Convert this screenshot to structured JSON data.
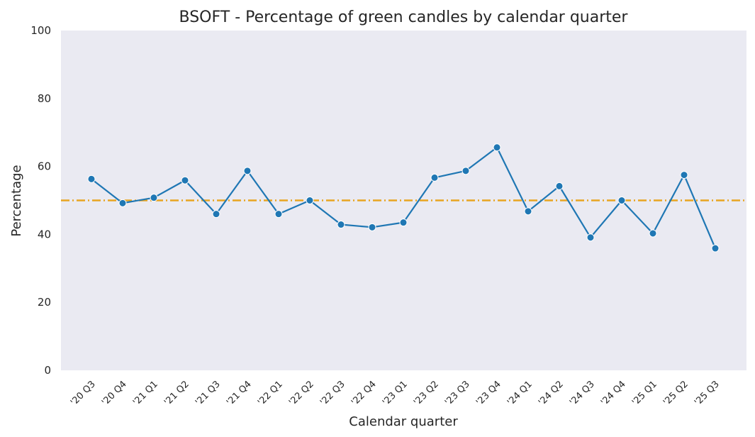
{
  "chart_data": {
    "type": "line",
    "title": "BSOFT - Percentage of green candles by calendar quarter",
    "xlabel": "Calendar quarter",
    "ylabel": "Percentage",
    "ylim": [
      0,
      100
    ],
    "yticks": [
      "0",
      "20",
      "40",
      "60",
      "80",
      "100"
    ],
    "grid": false,
    "categories": [
      "'20 Q3",
      "'20 Q4",
      "'21 Q1",
      "'21 Q2",
      "'21 Q3",
      "'21 Q4",
      "'22 Q1",
      "'22 Q2",
      "'22 Q3",
      "'22 Q4",
      "'23 Q1",
      "'23 Q2",
      "'23 Q3",
      "'23 Q4",
      "'24 Q1",
      "'24 Q2",
      "'24 Q3",
      "'24 Q4",
      "'25 Q1",
      "'25 Q2",
      "'25 Q3"
    ],
    "series": [
      {
        "values": [
          56.3,
          49.2,
          50.8,
          55.9,
          46.0,
          58.7,
          46.0,
          50.0,
          42.9,
          42.1,
          43.5,
          56.7,
          58.7,
          65.6,
          46.8,
          54.2,
          39.1,
          50.0,
          40.3,
          57.5,
          35.9
        ],
        "color": "#1f77b4"
      }
    ],
    "reference_line": {
      "value": 50,
      "color": "#e8a521",
      "style": "dash-dot"
    },
    "background_color": "#eaeaf2"
  }
}
